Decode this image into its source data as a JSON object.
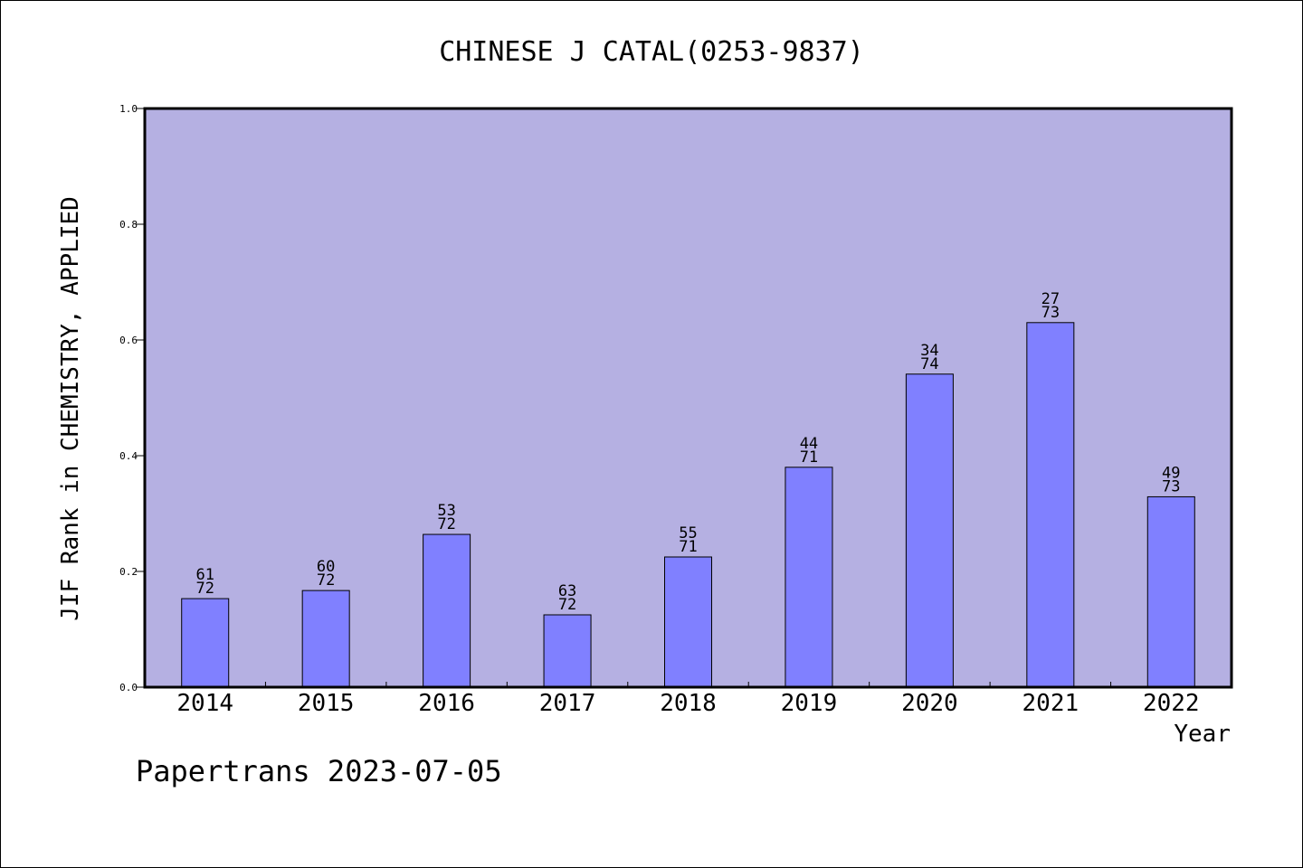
{
  "chart_data": {
    "type": "bar",
    "title": "CHINESE J CATAL(0253-9837)",
    "xlabel": "Year",
    "ylabel": "JIF Rank in CHEMISTRY, APPLIED",
    "categories": [
      "2014",
      "2015",
      "2016",
      "2017",
      "2018",
      "2019",
      "2020",
      "2021",
      "2022"
    ],
    "values": [
      0.153,
      0.167,
      0.264,
      0.125,
      0.225,
      0.38,
      0.541,
      0.63,
      0.329
    ],
    "ranks": [
      "61",
      "60",
      "53",
      "63",
      "55",
      "44",
      "34",
      "27",
      "49"
    ],
    "totals": [
      "72",
      "72",
      "72",
      "72",
      "71",
      "71",
      "74",
      "73",
      "73"
    ],
    "ylim": [
      0,
      1.0
    ],
    "yticks": [
      "0.0",
      "0.2",
      "0.4",
      "0.6",
      "0.8",
      "1.0"
    ],
    "grid": false,
    "colors": {
      "plot_background": "#b5b0e2",
      "bar_fill": "#8080ff",
      "bar_stroke": "#000000"
    }
  },
  "footer": {
    "watermark": "Papertrans 2023-07-05"
  }
}
